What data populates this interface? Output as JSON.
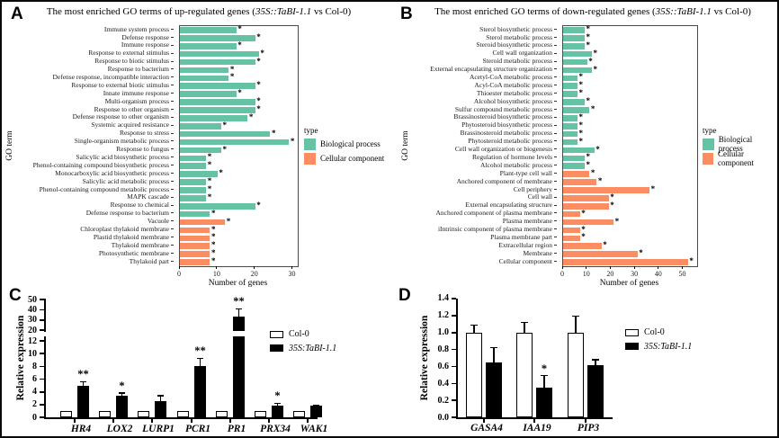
{
  "chart_data": [
    {
      "panel": "A",
      "type": "bar",
      "orientation": "horizontal",
      "title": "The most enriched GO terms of up-regulated genes (35S::TaBI-1.1 vs Col-0)",
      "title_prefix": "The most enriched GO terms of up-regulated genes (",
      "title_italic": "35S::TaBI-1.1",
      "title_suffix": " vs Col-0)",
      "xlabel": "Number of genes",
      "ylabel": "GO term",
      "xticks": [
        0,
        10,
        20,
        30
      ],
      "xlim": [
        0,
        31.3
      ],
      "legend_title": "type",
      "legend": [
        {
          "id": "BP",
          "label": "Biological process",
          "color": "#66C2A5"
        },
        {
          "id": "CC",
          "label": "Cellular component",
          "color": "#FC8D62"
        }
      ],
      "bars": [
        {
          "label": "Immune system process",
          "value": 15,
          "type": "BP",
          "sig": "*"
        },
        {
          "label": "Defense response",
          "value": 20,
          "type": "BP",
          "sig": "*"
        },
        {
          "label": "Immune response",
          "value": 15,
          "type": "BP",
          "sig": "*"
        },
        {
          "label": "Response to external stimulus",
          "value": 21,
          "type": "BP",
          "sig": "*"
        },
        {
          "label": "Response to biotic stimulus",
          "value": 20,
          "type": "BP",
          "sig": "*"
        },
        {
          "label": "Response to bacterium",
          "value": 13,
          "type": "BP",
          "sig": "*"
        },
        {
          "label": "Defense response, incompatible interaction",
          "value": 13,
          "type": "BP",
          "sig": "*"
        },
        {
          "label": "Response to external biotic stimulus",
          "value": 20,
          "type": "BP",
          "sig": "*"
        },
        {
          "label": "Innate immune response",
          "value": 15,
          "type": "BP",
          "sig": "*"
        },
        {
          "label": "Multi-organism process",
          "value": 20,
          "type": "BP",
          "sig": "*"
        },
        {
          "label": "Response to other organism",
          "value": 20,
          "type": "BP",
          "sig": "*"
        },
        {
          "label": "Defense response to other organism",
          "value": 18,
          "type": "BP",
          "sig": "*"
        },
        {
          "label": "Systemic acquired resistance",
          "value": 11,
          "type": "BP",
          "sig": "*"
        },
        {
          "label": "Response to stress",
          "value": 24,
          "type": "BP",
          "sig": "*"
        },
        {
          "label": "Single-organism metabolic process",
          "value": 29,
          "type": "BP",
          "sig": "*"
        },
        {
          "label": "Response to fungus",
          "value": 11,
          "type": "BP",
          "sig": "*"
        },
        {
          "label": "Salicylic acid biosynthetic process",
          "value": 7,
          "type": "BP",
          "sig": "*"
        },
        {
          "label": "Phenol-containing compound biosynthetic process",
          "value": 7,
          "type": "BP",
          "sig": "*"
        },
        {
          "label": "Monocarboxylic acid biosynthetic process",
          "value": 10,
          "type": "BP",
          "sig": "*"
        },
        {
          "label": "Salicylic acid metabolic process",
          "value": 7,
          "type": "BP",
          "sig": "*"
        },
        {
          "label": "Phenol-containing compound metabolic process",
          "value": 7,
          "type": "BP",
          "sig": "*"
        },
        {
          "label": "MAPK cascade",
          "value": 7,
          "type": "BP",
          "sig": "*"
        },
        {
          "label": "Response to chemical",
          "value": 20,
          "type": "BP",
          "sig": "*"
        },
        {
          "label": "Defense response to bacterium",
          "value": 8,
          "type": "BP",
          "sig": "*"
        },
        {
          "label": "Vacuole",
          "value": 12,
          "type": "CC",
          "sig": "*"
        },
        {
          "label": "Chloroplast thylakoid membrane",
          "value": 8,
          "type": "CC",
          "sig": "*"
        },
        {
          "label": "Plastid thylakoid membrane",
          "value": 8,
          "type": "CC",
          "sig": "*"
        },
        {
          "label": "Thylakoid membrane",
          "value": 8,
          "type": "CC",
          "sig": "*"
        },
        {
          "label": "Photosynthetic membrane",
          "value": 8,
          "type": "CC",
          "sig": "*"
        },
        {
          "label": "Thylakoid part",
          "value": 8,
          "type": "CC",
          "sig": "*"
        }
      ]
    },
    {
      "panel": "B",
      "type": "bar",
      "orientation": "horizontal",
      "title": "The most enriched GO terms of down-regulated genes (35S::TaBI-1.1 vs Col-0)",
      "title_prefix": "The most enriched GO terms of down-regulated genes (",
      "title_italic": "35S::TaBI-1.1",
      "title_suffix": " vs Col-0)",
      "xlabel": "Number of genes",
      "ylabel": "GO term",
      "xticks": [
        0,
        10,
        20,
        30,
        40,
        50
      ],
      "xlim": [
        0,
        55.8
      ],
      "legend_title": "type",
      "legend": [
        {
          "id": "BP",
          "label": "Biological process",
          "color": "#66C2A5"
        },
        {
          "id": "CC",
          "label": "Cellular component",
          "color": "#FC8D62"
        }
      ],
      "bars": [
        {
          "label": "Sterol biosynthetic process",
          "value": 9,
          "type": "BP",
          "sig": "*"
        },
        {
          "label": "Sterol metabolic process",
          "value": 9,
          "type": "BP",
          "sig": "*"
        },
        {
          "label": "Steroid biosynthetic process",
          "value": 9,
          "type": "BP",
          "sig": "*"
        },
        {
          "label": "Cell wall organization",
          "value": 12,
          "type": "BP",
          "sig": "*"
        },
        {
          "label": "Steroid metabolic process",
          "value": 10,
          "type": "BP",
          "sig": "*"
        },
        {
          "label": "External encapsulating structure organization",
          "value": 12,
          "type": "BP",
          "sig": "*"
        },
        {
          "label": "Acetyl-CoA metabolic process",
          "value": 6,
          "type": "BP",
          "sig": "*"
        },
        {
          "label": "Acyl-CoA metabolic process",
          "value": 6,
          "type": "BP",
          "sig": "*"
        },
        {
          "label": "Thioester metabolic process",
          "value": 6,
          "type": "BP",
          "sig": "*"
        },
        {
          "label": "Alcohol biosynthetic process",
          "value": 9,
          "type": "BP",
          "sig": "*"
        },
        {
          "label": "Sulfur compound metabolic process",
          "value": 11,
          "type": "BP",
          "sig": "*"
        },
        {
          "label": "Brassinosteroid biosynthetic process",
          "value": 6,
          "type": "BP",
          "sig": "*"
        },
        {
          "label": "Phytosteroid biosynthetic process",
          "value": 6,
          "type": "BP",
          "sig": "*"
        },
        {
          "label": "Brassinosteroid metabolic process",
          "value": 6,
          "type": "BP",
          "sig": "*"
        },
        {
          "label": "Phytosteroid metabolic process",
          "value": 6,
          "type": "BP",
          "sig": "*"
        },
        {
          "label": "Cell wall organization or biogenesis",
          "value": 13,
          "type": "BP",
          "sig": "*"
        },
        {
          "label": "Regulation of hormone levels",
          "value": 9,
          "type": "BP",
          "sig": "*"
        },
        {
          "label": "Alcohol metabolic process",
          "value": 9,
          "type": "BP",
          "sig": "*"
        },
        {
          "label": "Plant-type cell wall",
          "value": 11,
          "type": "CC",
          "sig": "*"
        },
        {
          "label": "Anchored component of membrane",
          "value": 14,
          "type": "CC",
          "sig": "*"
        },
        {
          "label": "Cell periphery",
          "value": 36,
          "type": "CC",
          "sig": "*"
        },
        {
          "label": "Cell wall",
          "value": 19,
          "type": "CC",
          "sig": "*"
        },
        {
          "label": "External encapsulating structure",
          "value": 19,
          "type": "CC",
          "sig": "*"
        },
        {
          "label": "Anchored component of plasma membrane",
          "value": 7,
          "type": "CC",
          "sig": "*"
        },
        {
          "label": "Plasma membrane",
          "value": 21,
          "type": "CC",
          "sig": "*"
        },
        {
          "label": "iIntrinsic component of plasma membrane",
          "value": 7,
          "type": "CC",
          "sig": "*"
        },
        {
          "label": "Plasma membrane part",
          "value": 7,
          "type": "CC",
          "sig": "*"
        },
        {
          "label": "Extracellular region",
          "value": 16,
          "type": "CC",
          "sig": "*"
        },
        {
          "label": "Membrane",
          "value": 31,
          "type": "CC",
          "sig": "*"
        },
        {
          "label": "Cellular component",
          "value": 52,
          "type": "CC",
          "sig": "*"
        }
      ]
    },
    {
      "panel": "C",
      "type": "grouped-bar",
      "ylabel": "Relative expression",
      "categories": [
        "HR4",
        "LOX2",
        "LURP1",
        "PCR1",
        "PR1",
        "PRX34",
        "WAK1"
      ],
      "series": [
        {
          "name": "Col-0",
          "fill": "#FFFFFF",
          "values": [
            1.0,
            1.0,
            1.0,
            1.0,
            1.0,
            1.0,
            1.0
          ],
          "errors": [
            0,
            0,
            0,
            0,
            0,
            0,
            0
          ]
        },
        {
          "name": "35S:TaBI-1.1",
          "fill": "#000000",
          "values": [
            5.0,
            3.4,
            2.6,
            8.0,
            33,
            1.9,
            1.8
          ],
          "errors": [
            0.6,
            0.4,
            0.8,
            1.3,
            8,
            0.3,
            0.15
          ]
        }
      ],
      "sig": [
        "**",
        "*",
        "",
        "**",
        "**",
        "*",
        ""
      ],
      "y_axis": {
        "breakAxis": true,
        "lower_range": [
          0,
          12
        ],
        "upper_range": [
          20,
          50
        ],
        "lower_ticks": [
          0,
          2,
          4,
          6,
          8,
          10,
          12
        ],
        "upper_ticks": [
          20,
          30,
          40,
          50
        ]
      }
    },
    {
      "panel": "D",
      "type": "grouped-bar",
      "ylabel": "Relative expression",
      "categories": [
        "GASA4",
        "IAA19",
        "PIP3"
      ],
      "series": [
        {
          "name": "Col-0",
          "fill": "#FFFFFF",
          "values": [
            1.0,
            1.0,
            1.0
          ],
          "errors": [
            0.09,
            0.12,
            0.19
          ]
        },
        {
          "name": "35S:TaBI-1.1",
          "fill": "#000000",
          "values": [
            0.65,
            0.35,
            0.62
          ],
          "errors": [
            0.17,
            0.14,
            0.06
          ]
        }
      ],
      "sig": [
        "",
        "*",
        ""
      ],
      "y_axis": {
        "breakAxis": false,
        "ylim": [
          0,
          1.4
        ],
        "ticks": [
          0,
          0.2,
          0.4,
          0.6,
          0.8,
          1.0,
          1.2,
          1.4
        ],
        "tick_decimals": 1
      }
    }
  ]
}
